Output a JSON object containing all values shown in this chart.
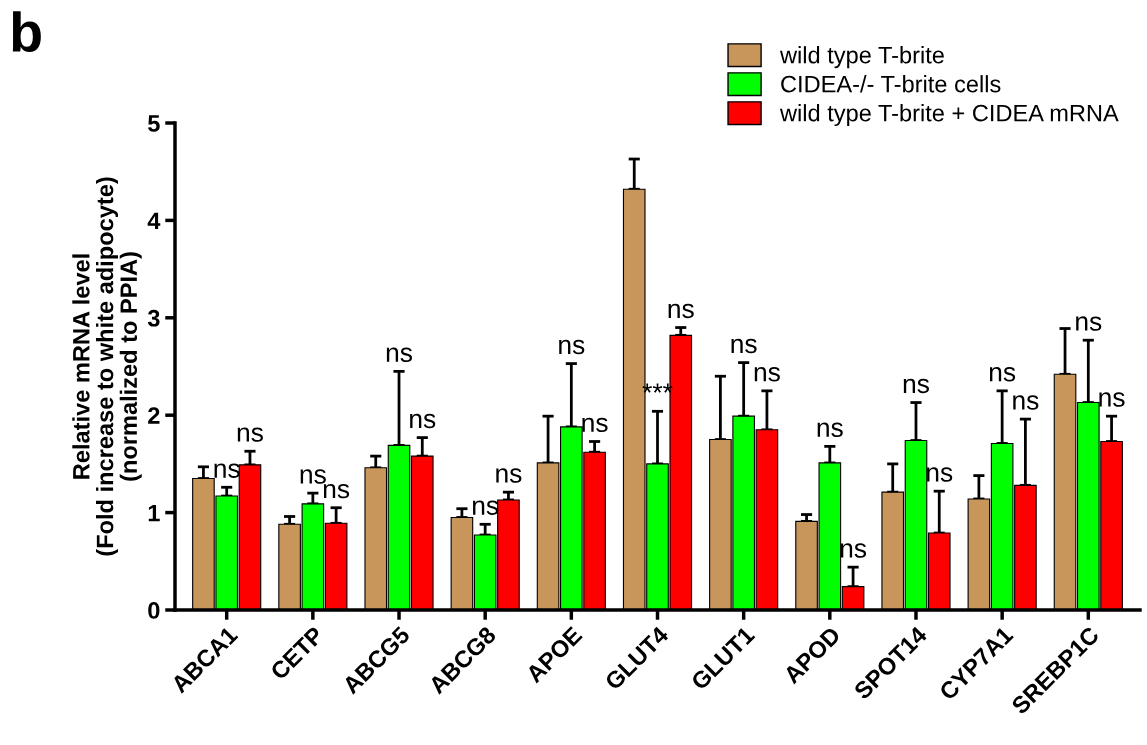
{
  "chart_data": {
    "type": "bar",
    "title": "b",
    "ylabel": "Relative mRNA level\n(Fold increase to white adipocyte)\n(normalized to PPIA)",
    "categories": [
      "ABCA1",
      "CETP",
      "ABCG5",
      "ABCG8",
      "APOE",
      "GLUT4",
      "GLUT1",
      "APOD",
      "SPOT14",
      "CYP7A1",
      "SREBP1C"
    ],
    "series": [
      {
        "name": "wild type T-brite",
        "color": "#c8965a",
        "values": [
          1.35,
          0.88,
          1.46,
          0.95,
          1.51,
          4.32,
          1.75,
          0.91,
          1.21,
          1.14,
          2.42
        ],
        "errors": [
          [
            1.35,
            1.47
          ],
          [
            0.88,
            0.96
          ],
          [
            1.46,
            1.58
          ],
          [
            0.95,
            1.04
          ],
          [
            1.51,
            1.99
          ],
          [
            4.32,
            4.63
          ],
          [
            1.75,
            2.4
          ],
          [
            0.91,
            0.98
          ],
          [
            1.21,
            1.5
          ],
          [
            1.14,
            1.38
          ],
          [
            2.42,
            2.89
          ]
        ]
      },
      {
        "name": "CIDEA-/- T-brite cells",
        "color": "#00ff00",
        "values": [
          1.17,
          1.09,
          1.69,
          0.77,
          1.88,
          1.5,
          1.99,
          1.51,
          1.74,
          1.71,
          2.13
        ],
        "errors": [
          [
            1.17,
            1.26
          ],
          [
            1.09,
            1.2
          ],
          [
            1.69,
            2.45
          ],
          [
            0.77,
            0.88
          ],
          [
            1.88,
            2.53
          ],
          [
            1.5,
            2.04
          ],
          [
            1.99,
            2.54
          ],
          [
            1.51,
            1.68
          ],
          [
            1.74,
            2.13
          ],
          [
            1.71,
            2.25
          ],
          [
            2.13,
            2.77
          ]
        ]
      },
      {
        "name": "wild type T-brite + CIDEA mRNA",
        "color": "#ff0000",
        "values": [
          1.49,
          0.89,
          1.58,
          1.13,
          1.62,
          2.82,
          1.85,
          0.24,
          0.79,
          1.28,
          1.73
        ],
        "errors": [
          [
            1.49,
            1.63
          ],
          [
            0.89,
            1.05
          ],
          [
            1.58,
            1.77
          ],
          [
            1.13,
            1.21
          ],
          [
            1.62,
            1.73
          ],
          [
            2.82,
            2.9
          ],
          [
            1.85,
            2.25
          ],
          [
            0.24,
            0.44
          ],
          [
            0.79,
            1.22
          ],
          [
            1.28,
            1.96
          ],
          [
            1.73,
            1.99
          ]
        ]
      }
    ],
    "annotations": [
      "ns",
      "ns",
      "ns",
      "ns",
      "ns",
      "ns",
      "ns",
      "ns",
      "ns",
      "ns",
      "***",
      "ns",
      "ns",
      "ns",
      "ns",
      "ns",
      "ns",
      "ns",
      "ns",
      "ns",
      "ns",
      "ns"
    ],
    "ylim": [
      0,
      5
    ],
    "yticks": [
      0,
      1,
      2,
      3,
      4,
      5
    ],
    "grid": false,
    "legend": "top right"
  }
}
